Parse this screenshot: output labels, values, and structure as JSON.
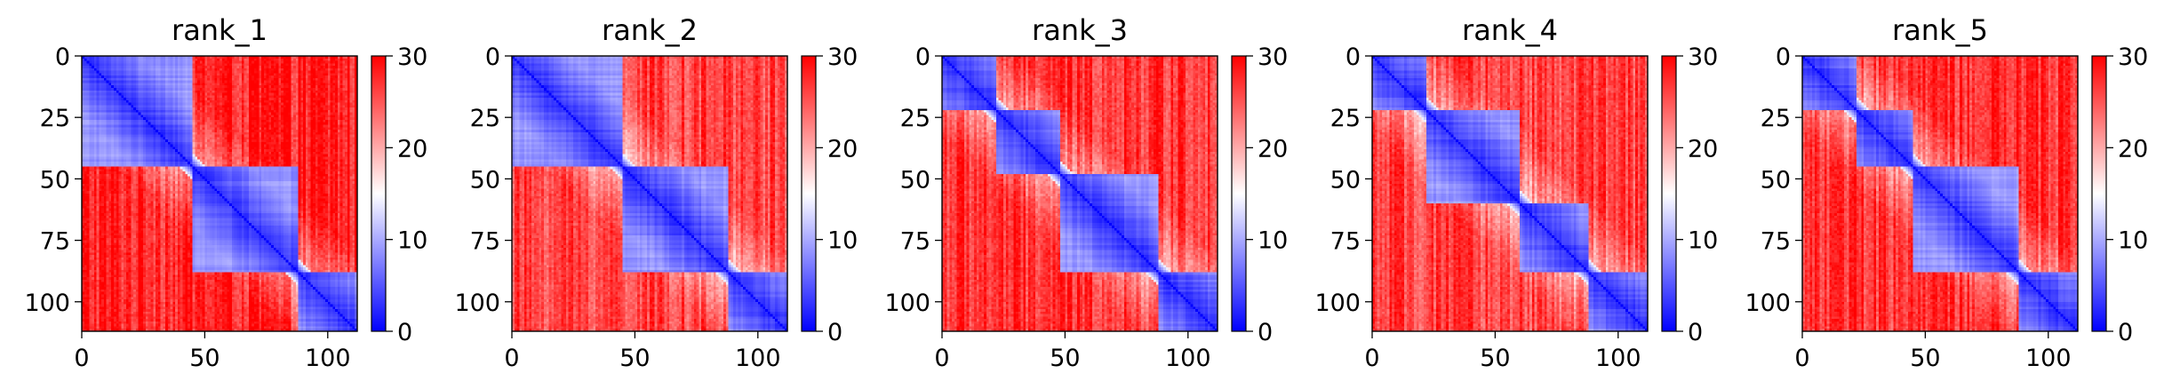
{
  "chart_data": [
    {
      "type": "heatmap",
      "title": "rank_1",
      "x_ticks": [
        "0",
        "50",
        "100"
      ],
      "y_ticks": [
        "0",
        "25",
        "50",
        "75",
        "100"
      ],
      "xlim": [
        0,
        112
      ],
      "ylim": [
        112,
        0
      ],
      "colorbar": {
        "ticks": [
          "0",
          "10",
          "20",
          "30"
        ],
        "range": [
          0,
          30
        ],
        "colormap": "bwr"
      },
      "domains": [
        [
          0,
          45
        ],
        [
          45,
          88
        ],
        [
          88,
          112
        ]
      ],
      "offdiag_min": 22
    },
    {
      "type": "heatmap",
      "title": "rank_2",
      "x_ticks": [
        "0",
        "50",
        "100"
      ],
      "y_ticks": [
        "0",
        "25",
        "50",
        "75",
        "100"
      ],
      "xlim": [
        0,
        112
      ],
      "ylim": [
        112,
        0
      ],
      "colorbar": {
        "ticks": [
          "0",
          "10",
          "20",
          "30"
        ],
        "range": [
          0,
          30
        ],
        "colormap": "bwr"
      },
      "domains": [
        [
          0,
          45
        ],
        [
          45,
          88
        ],
        [
          88,
          112
        ]
      ],
      "offdiag_min": 20
    },
    {
      "type": "heatmap",
      "title": "rank_3",
      "x_ticks": [
        "0",
        "50",
        "100"
      ],
      "y_ticks": [
        "0",
        "25",
        "50",
        "75",
        "100"
      ],
      "xlim": [
        0,
        112
      ],
      "ylim": [
        112,
        0
      ],
      "colorbar": {
        "ticks": [
          "0",
          "10",
          "20",
          "30"
        ],
        "range": [
          0,
          30
        ],
        "colormap": "bwr"
      },
      "domains": [
        [
          0,
          22
        ],
        [
          22,
          48
        ],
        [
          48,
          88
        ],
        [
          88,
          112
        ]
      ],
      "offdiag_min": 21
    },
    {
      "type": "heatmap",
      "title": "rank_4",
      "x_ticks": [
        "0",
        "50",
        "100"
      ],
      "y_ticks": [
        "0",
        "25",
        "50",
        "75",
        "100"
      ],
      "xlim": [
        0,
        112
      ],
      "ylim": [
        112,
        0
      ],
      "colorbar": {
        "ticks": [
          "0",
          "10",
          "20",
          "30"
        ],
        "range": [
          0,
          30
        ],
        "colormap": "bwr"
      },
      "domains": [
        [
          0,
          22
        ],
        [
          22,
          60
        ],
        [
          60,
          88
        ],
        [
          88,
          112
        ]
      ],
      "offdiag_min": 20
    },
    {
      "type": "heatmap",
      "title": "rank_5",
      "x_ticks": [
        "0",
        "50",
        "100"
      ],
      "y_ticks": [
        "0",
        "25",
        "50",
        "75",
        "100"
      ],
      "xlim": [
        0,
        112
      ],
      "ylim": [
        112,
        0
      ],
      "colorbar": {
        "ticks": [
          "0",
          "10",
          "20",
          "30"
        ],
        "range": [
          0,
          30
        ],
        "colormap": "bwr"
      },
      "domains": [
        [
          0,
          22
        ],
        [
          22,
          45
        ],
        [
          45,
          88
        ],
        [
          88,
          112
        ]
      ],
      "offdiag_min": 21
    }
  ]
}
